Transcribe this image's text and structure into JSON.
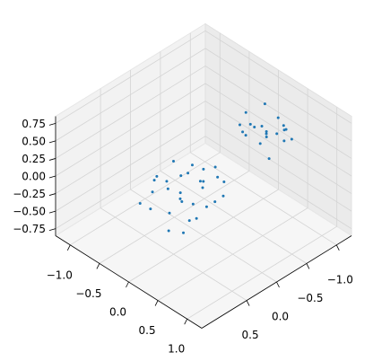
{
  "chart_data": {
    "type": "scatter3d",
    "color": "#1f77b4",
    "grid": true,
    "xlim": [
      -1.25,
      1.25
    ],
    "ylim": [
      -1.25,
      1.25
    ],
    "zlim": [
      -0.85,
      0.85
    ],
    "xticks": [
      {
        "value": -1,
        "label": "−1.0"
      },
      {
        "value": -0.5,
        "label": "−0.5"
      },
      {
        "value": 0,
        "label": "0.0"
      },
      {
        "value": 0.5,
        "label": "0.5"
      },
      {
        "value": 1,
        "label": "1.0"
      }
    ],
    "yticks": [
      {
        "value": -1,
        "label": "−1.0"
      },
      {
        "value": -0.5,
        "label": "−0.5"
      },
      {
        "value": 0,
        "label": "0.0"
      },
      {
        "value": 0.5,
        "label": "0.5"
      }
    ],
    "zticks": [
      {
        "value": -0.75,
        "label": "−0.75"
      },
      {
        "value": -0.5,
        "label": "−0.50"
      },
      {
        "value": -0.25,
        "label": "−0.25"
      },
      {
        "value": 0,
        "label": "0.00"
      },
      {
        "value": 0.25,
        "label": "0.25"
      },
      {
        "value": 0.5,
        "label": "0.50"
      },
      {
        "value": 0.75,
        "label": "0.75"
      }
    ],
    "x": [
      -0.31,
      0.12,
      0.25,
      -0.08,
      0.4,
      -0.45,
      0.05,
      0.18,
      -0.22,
      0.33,
      -0.14,
      0.27,
      -0.36,
      0.09,
      0.02,
      -0.19,
      0.44,
      -0.27,
      0.15,
      -0.05,
      0.21,
      -0.41,
      0.31,
      -0.11,
      0.07,
      0.36,
      -0.33,
      0.13,
      -0.02,
      0.24,
      0.05,
      -0.12,
      0.2,
      -0.25,
      0.1,
      0.28,
      -0.05,
      0.15,
      -0.18,
      0.0,
      0.22,
      -0.3,
      0.08,
      -0.1,
      0.17,
      0.3,
      -0.22,
      0.03,
      0.12,
      -0.15
    ],
    "y": [
      0.55,
      0.12,
      0.48,
      0.3,
      0.2,
      0.62,
      0.05,
      0.35,
      0.4,
      -0.02,
      0.25,
      0.6,
      0.15,
      0.45,
      0.28,
      0.7,
      0.1,
      0.33,
      -0.05,
      0.52,
      0.22,
      0.38,
      0.42,
      0.08,
      0.65,
      0.3,
      0.5,
      0.18,
      0.37,
      0.0,
      -1.0,
      -0.9,
      -1.15,
      -0.85,
      -1.25,
      -0.95,
      -1.1,
      -0.8,
      -1.2,
      -1.05,
      -0.88,
      -1.0,
      -1.3,
      -0.75,
      -1.08,
      -1.18,
      -0.92,
      -0.82,
      -1.22,
      -1.12
    ],
    "z": [
      -0.1,
      0.05,
      -0.25,
      0.12,
      -0.05,
      -0.3,
      0.15,
      -0.12,
      0.02,
      0.08,
      -0.18,
      -0.35,
      0.1,
      -0.08,
      0.2,
      -0.2,
      0.0,
      -0.15,
      0.18,
      -0.28,
      0.06,
      -0.02,
      -0.22,
      0.14,
      -0.4,
      -0.09,
      0.03,
      0.09,
      -0.14,
      0.11,
      0.1,
      0.2,
      0.0,
      0.15,
      0.05,
      0.25,
      -0.05,
      0.12,
      0.3,
      0.08,
      -0.1,
      0.22,
      0.02,
      0.18,
      0.35,
      0.06,
      -0.02,
      0.28,
      0.14,
      0.04
    ]
  }
}
